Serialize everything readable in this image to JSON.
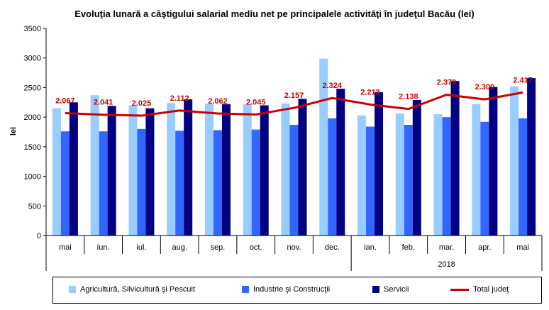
{
  "chart_data": {
    "type": "bar",
    "title": "Evoluţia lunară a câştigului salarial mediu net pe principalele activităţi în judeţul Bacău (lei)",
    "ylabel": "lei",
    "xlabel": "",
    "ylim": [
      0,
      3500
    ],
    "yticks": [
      0,
      500,
      1000,
      1500,
      2000,
      2500,
      3000,
      3500
    ],
    "categories": [
      "mai",
      "iun.",
      "iul.",
      "aug.",
      "sep.",
      "oct.",
      "nov.",
      "dec.",
      "ian.",
      "feb.",
      "mar.",
      "apr.",
      "mai"
    ],
    "year_label": "2018",
    "year_group_start_index": 8,
    "grid": false,
    "legend_position": "bottom",
    "series": [
      {
        "name": "Agricultură, Silvicultură şi Pescuit",
        "type": "bar",
        "color": "#99ccff",
        "values": [
          2150,
          2370,
          2200,
          2240,
          2230,
          2220,
          2230,
          2990,
          2030,
          2060,
          2050,
          2220,
          2520
        ]
      },
      {
        "name": "Industrie şi Construcţii",
        "type": "bar",
        "color": "#3366ff",
        "values": [
          1760,
          1760,
          1800,
          1770,
          1780,
          1790,
          1870,
          1980,
          1840,
          1870,
          2000,
          1920,
          1980
        ]
      },
      {
        "name": "Servicii",
        "type": "bar",
        "color": "#000080",
        "values": [
          2250,
          2190,
          2150,
          2300,
          2220,
          2200,
          2310,
          2480,
          2420,
          2290,
          2610,
          2510,
          2660
        ]
      },
      {
        "name": "Total judeţ",
        "type": "line",
        "color": "#cc0000",
        "values": [
          2067,
          2041,
          2025,
          2112,
          2062,
          2045,
          2157,
          2324,
          2213,
          2138,
          2379,
          2300,
          2417
        ],
        "labels": [
          "2.067",
          "2.041",
          "2.025",
          "2.112",
          "2.062",
          "2.045",
          "2.157",
          "2.324",
          "2.213",
          "2.138",
          "2.379",
          "2.300",
          "2.417"
        ]
      }
    ]
  }
}
